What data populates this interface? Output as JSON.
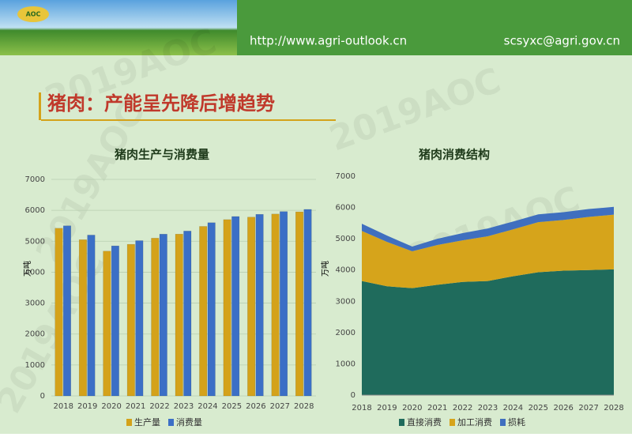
{
  "header": {
    "url": "http://www.agri-outlook.cn",
    "email": "scsyxc@agri.gov.cn",
    "logo": "AOC",
    "title": "猪肉：产能呈先降后增趋势",
    "watermark": "2019AOC"
  },
  "chart_data": [
    {
      "type": "bar",
      "title": "猪肉生产与消费量",
      "y_label": "万吨",
      "categories": [
        "2018",
        "2019",
        "2020",
        "2021",
        "2022",
        "2023",
        "2024",
        "2025",
        "2026",
        "2027",
        "2028"
      ],
      "series": [
        {
          "name": "生产量",
          "color": "#d4a21a",
          "values": [
            5420,
            5050,
            4680,
            4900,
            5100,
            5230,
            5480,
            5700,
            5780,
            5880,
            5950
          ]
        },
        {
          "name": "消费量",
          "color": "#3b6fc6",
          "values": [
            5500,
            5200,
            4850,
            5020,
            5230,
            5330,
            5600,
            5800,
            5870,
            5960,
            6030
          ]
        }
      ],
      "ylim": [
        0,
        7000
      ],
      "yticks": [
        0,
        1000,
        2000,
        3000,
        4000,
        5000,
        6000,
        7000
      ],
      "grid": true,
      "legend": "bottom"
    },
    {
      "type": "area",
      "title": "猪肉消费结构",
      "y_label": "万吨",
      "stacked": true,
      "categories": [
        "2018",
        "2019",
        "2020",
        "2021",
        "2022",
        "2023",
        "2024",
        "2025",
        "2026",
        "2027",
        "2028"
      ],
      "series": [
        {
          "name": "直接消费",
          "color": "#1f6b5c",
          "values": [
            3650,
            3480,
            3420,
            3530,
            3620,
            3650,
            3800,
            3930,
            3980,
            4000,
            4020
          ]
        },
        {
          "name": "加工消费",
          "color": "#d6a41b",
          "values": [
            1600,
            1420,
            1180,
            1270,
            1330,
            1430,
            1500,
            1600,
            1620,
            1700,
            1750
          ]
        },
        {
          "name": "损耗",
          "color": "#3f6fbf",
          "values": [
            230,
            200,
            150,
            200,
            230,
            250,
            250,
            250,
            250,
            250,
            250
          ]
        }
      ],
      "ylim": [
        0,
        7000
      ],
      "yticks": [
        0,
        1000,
        2000,
        3000,
        4000,
        5000,
        6000,
        7000
      ],
      "grid": false,
      "legend": "bottom"
    }
  ]
}
